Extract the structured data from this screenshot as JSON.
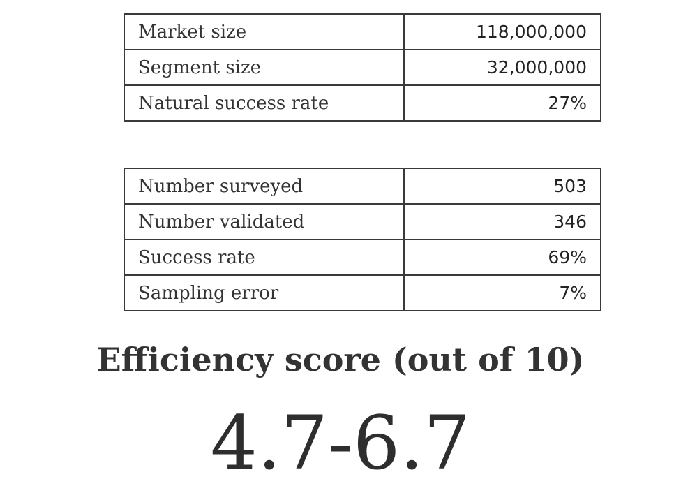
{
  "market_table": {
    "rows": [
      {
        "label": "Market size",
        "value": "118,000,000"
      },
      {
        "label": "Segment size",
        "value": "32,000,000"
      },
      {
        "label": "Natural success rate",
        "value": "27%"
      }
    ]
  },
  "survey_table": {
    "rows": [
      {
        "label": "Number surveyed",
        "value": "503"
      },
      {
        "label": "Number validated",
        "value": "346"
      },
      {
        "label": "Success rate",
        "value": "69%"
      },
      {
        "label": "Sampling error",
        "value": "7%"
      }
    ]
  },
  "efficiency": {
    "title": "Efficiency score (out of 10)",
    "score": "4.7-6.7"
  },
  "colors": {
    "text": "#333333",
    "border": "#3a3a3a",
    "background": "#ffffff"
  }
}
